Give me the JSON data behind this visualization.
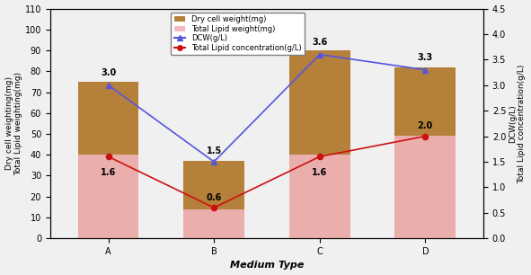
{
  "categories": [
    "A",
    "B",
    "C",
    "D"
  ],
  "dry_cell_weight": [
    75,
    37,
    90,
    82
  ],
  "total_lipid_weight": [
    40,
    14,
    40,
    49
  ],
  "dcw": [
    3.0,
    1.5,
    3.6,
    3.3
  ],
  "total_lipid_conc": [
    1.6,
    0.6,
    1.6,
    2.0
  ],
  "dcw_labels": [
    "3.0",
    "1.5",
    "3.6",
    "3.3"
  ],
  "lipid_conc_labels": [
    "1.6",
    "0.6",
    "1.6",
    "2.0"
  ],
  "bar_width": 0.32,
  "ylim_left": [
    0,
    110
  ],
  "ylim_right": [
    0,
    4.5
  ],
  "xlabel": "Medium Type",
  "ylabel_left": "Dry cell weighting(mg)\nTotal Lipid weighting(mg)",
  "ylabel_right": "DCW(g/L)\nTotal Lipid concentration(g/L)",
  "legend_labels": [
    "Dry cell weight(mg)",
    "Total Lipid weight(mg)",
    "DCW(g/L)",
    "Total Lipid concentration(g/L)"
  ],
  "bar_color_dry": "#b5813a",
  "bar_color_lipid": "#f4b8c1",
  "line_color_dcw": "#5555dd",
  "line_color_lipid_conc": "#cc1111",
  "background_color": "#f0f0f0",
  "yticks_left": [
    0,
    10,
    20,
    30,
    40,
    50,
    60,
    70,
    80,
    90,
    100,
    110
  ],
  "yticks_right": [
    0.0,
    0.5,
    1.0,
    1.5,
    2.0,
    2.5,
    3.0,
    3.5,
    4.0,
    4.5
  ],
  "dcw_label_offsets": [
    0.15,
    0.12,
    0.15,
    0.15
  ],
  "lipid_conc_label_offsets": [
    -0.22,
    0.1,
    -0.22,
    0.12
  ]
}
